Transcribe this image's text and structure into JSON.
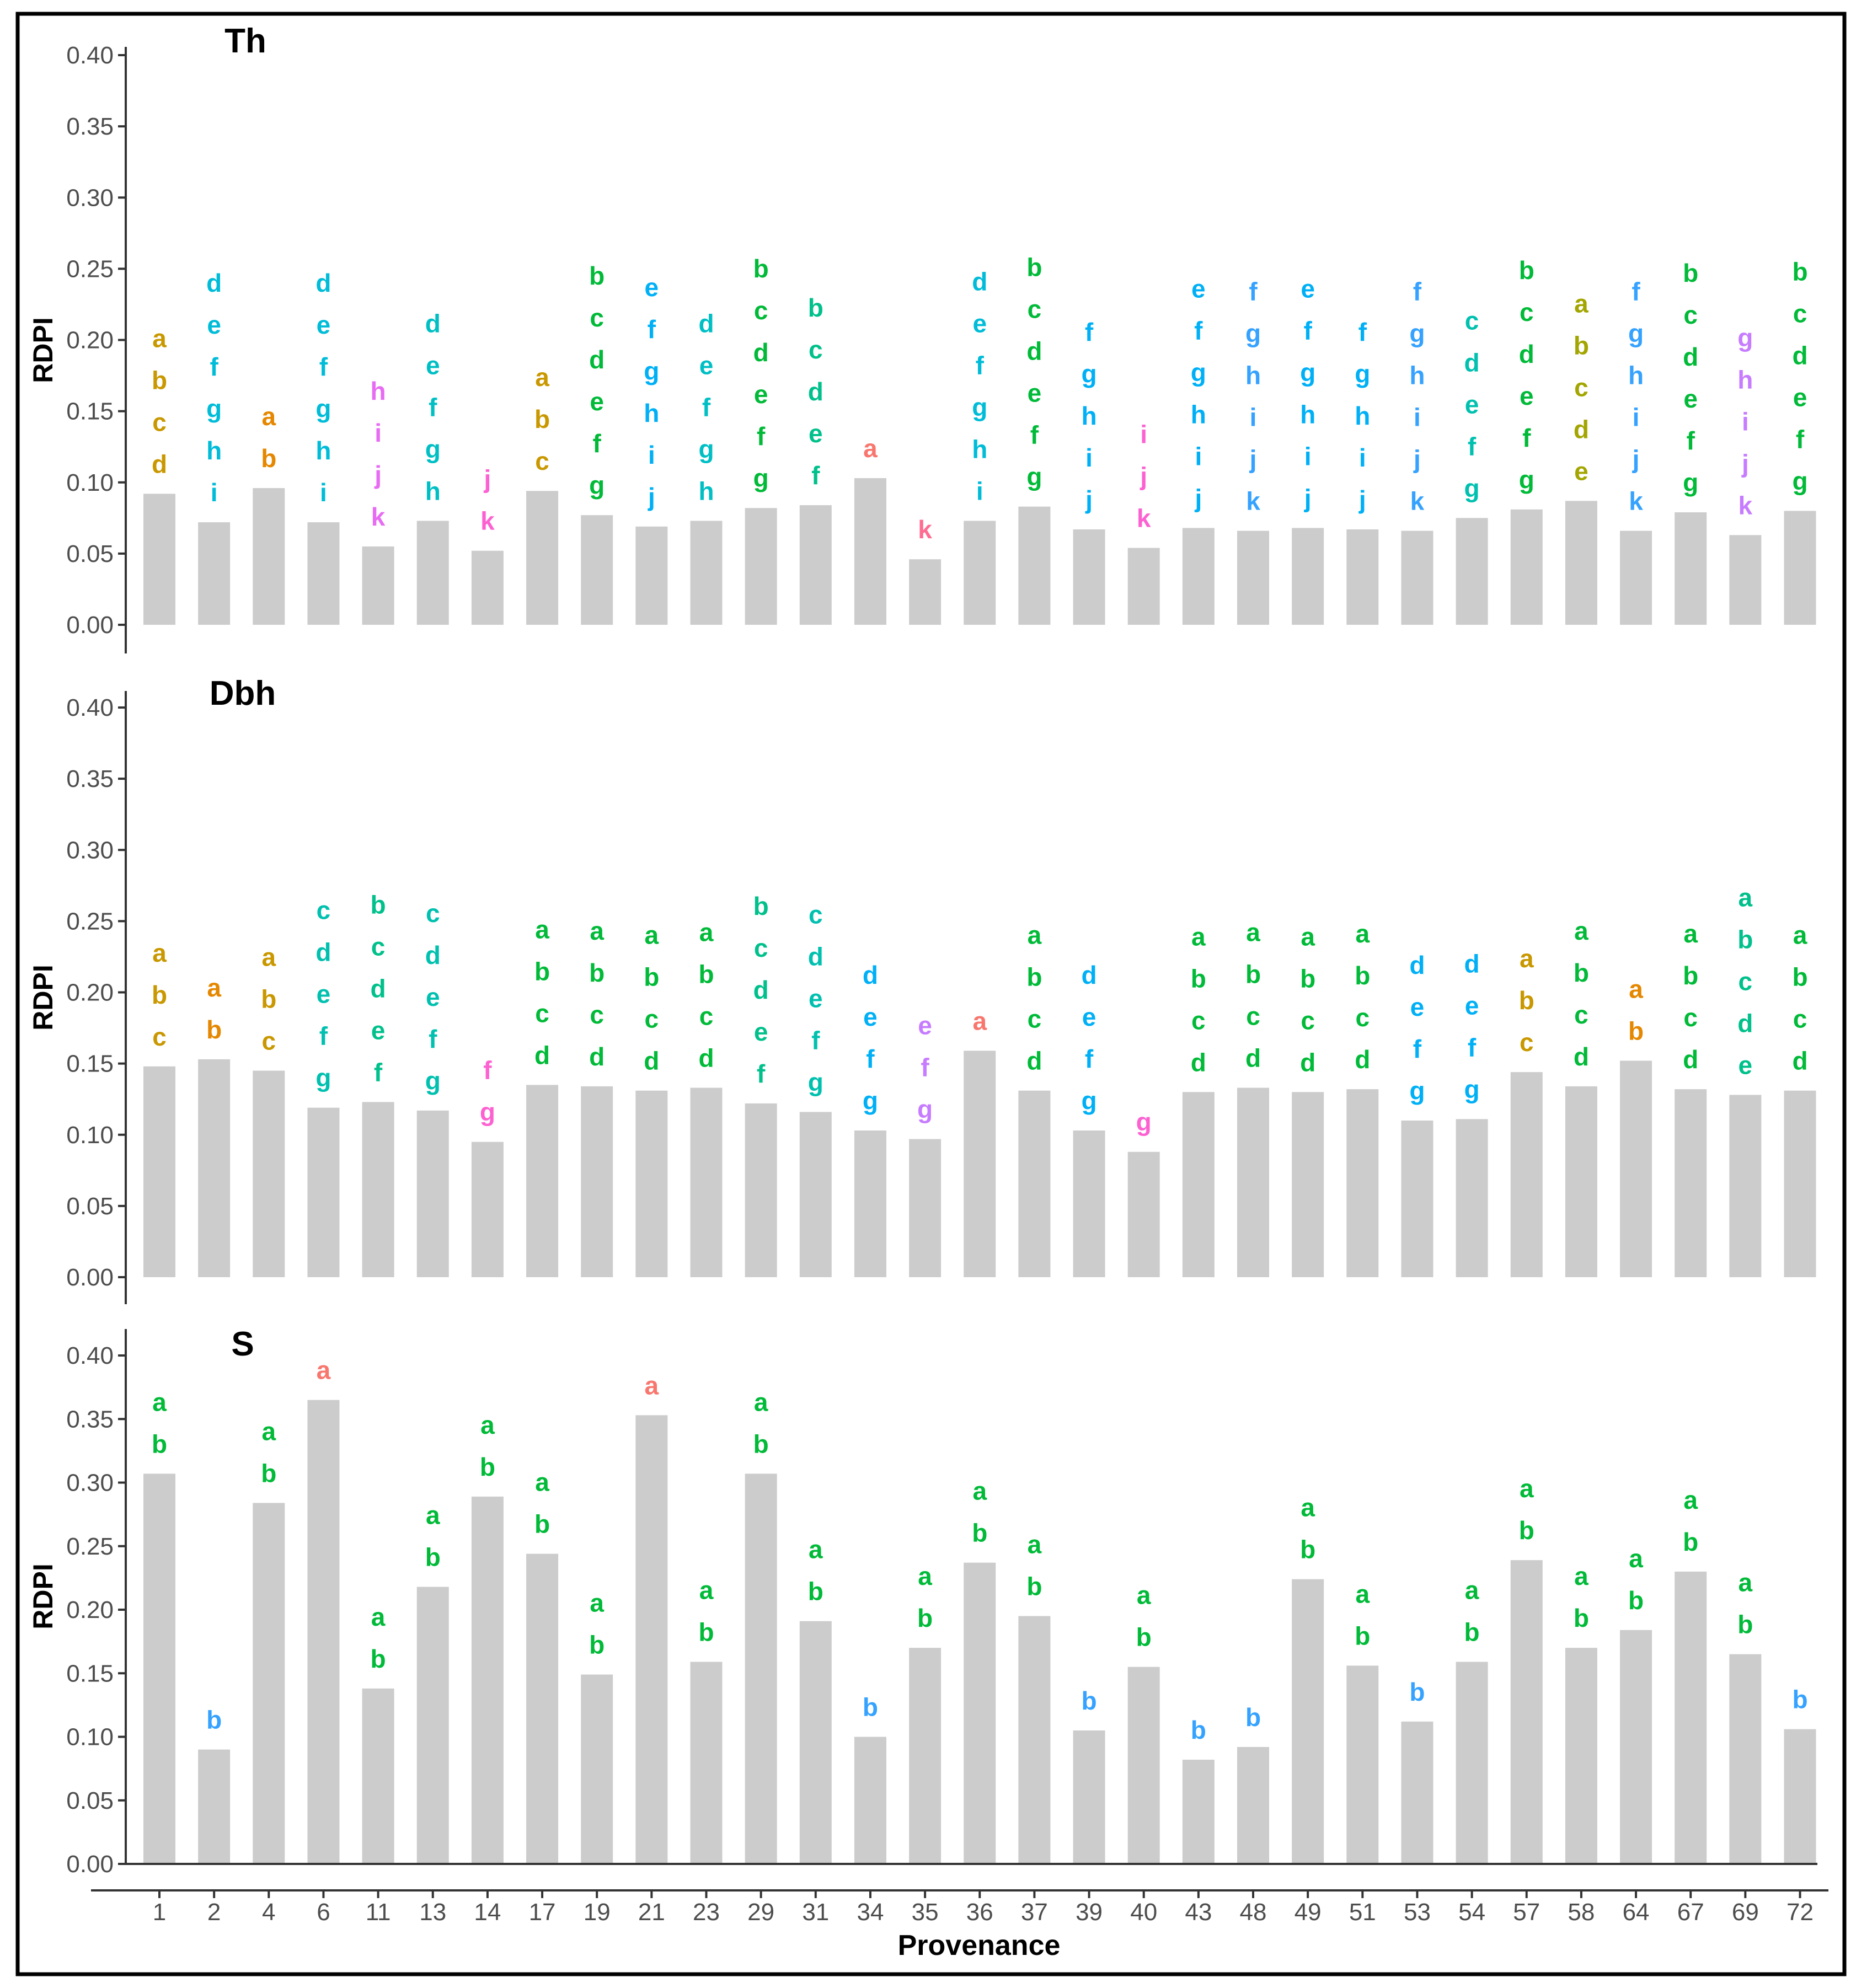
{
  "chart_data": {
    "type": "bar",
    "xlabel": "Provenance",
    "categories": [
      "1",
      "2",
      "4",
      "6",
      "11",
      "13",
      "14",
      "17",
      "19",
      "21",
      "23",
      "29",
      "31",
      "34",
      "35",
      "36",
      "37",
      "39",
      "40",
      "43",
      "48",
      "49",
      "51",
      "53",
      "54",
      "57",
      "58",
      "64",
      "67",
      "69",
      "72"
    ],
    "yticks": [
      "0.00",
      "0.05",
      "0.10",
      "0.15",
      "0.20",
      "0.25",
      "0.30",
      "0.35",
      "0.40"
    ],
    "ylim": [
      0,
      0.4
    ],
    "bar_color": "#cccccc",
    "panels": [
      {
        "title": "Th",
        "ylabel": "RDPI",
        "values": [
          0.092,
          0.072,
          0.096,
          0.072,
          0.055,
          0.073,
          0.052,
          0.094,
          0.077,
          0.069,
          0.073,
          0.082,
          0.084,
          0.103,
          0.046,
          0.073,
          0.083,
          0.067,
          0.054,
          0.068,
          0.066,
          0.068,
          0.067,
          0.066,
          0.075,
          0.081,
          0.087,
          0.066,
          0.079,
          0.063,
          0.08
        ],
        "letters": [
          "abcd",
          "defghi",
          "ab",
          "defghi",
          "hijk",
          "defgh",
          "jk",
          "abc",
          "bcdefg",
          "efghij",
          "defgh",
          "bcdefg",
          "bcdef",
          "a",
          "k",
          "defghi",
          "bcdefg",
          "fghij",
          "ijk",
          "efghij",
          "fghijk",
          "efghij",
          "fghij",
          "fghijk",
          "cdefg",
          "bcdefg",
          "abcde",
          "fghijk",
          "bcdefg",
          "ghijk",
          "bcdefg"
        ]
      },
      {
        "title": "Dbh",
        "ylabel": "RDPI",
        "values": [
          0.148,
          0.153,
          0.145,
          0.119,
          0.123,
          0.117,
          0.095,
          0.135,
          0.134,
          0.131,
          0.133,
          0.122,
          0.116,
          0.103,
          0.097,
          0.159,
          0.131,
          0.103,
          0.088,
          0.13,
          0.133,
          0.13,
          0.132,
          0.11,
          0.111,
          0.144,
          0.134,
          0.152,
          0.132,
          0.128,
          0.131
        ],
        "letters": [
          "abc",
          "ab",
          "abc",
          "cdefg",
          "bcdef",
          "cdefg",
          "fg",
          "abcd",
          "abcd",
          "abcd",
          "abcd",
          "bcdef",
          "cdefg",
          "defg",
          "efg",
          "a",
          "abcd",
          "defg",
          "g",
          "abcd",
          "abcd",
          "abcd",
          "abcd",
          "defg",
          "defg",
          "abc",
          "abcd",
          "ab",
          "abcd",
          "abcde",
          "abcd"
        ]
      },
      {
        "title": "S",
        "ylabel": "RDPI",
        "values": [
          0.307,
          0.09,
          0.284,
          0.365,
          0.138,
          0.218,
          0.289,
          0.244,
          0.149,
          0.353,
          0.159,
          0.307,
          0.191,
          0.1,
          0.17,
          0.237,
          0.195,
          0.105,
          0.155,
          0.082,
          0.092,
          0.224,
          0.156,
          0.112,
          0.159,
          0.239,
          0.17,
          0.184,
          0.23,
          0.165,
          0.106
        ],
        "letters": [
          "ab",
          "b",
          "ab",
          "a",
          "ab",
          "ab",
          "ab",
          "ab",
          "ab",
          "a",
          "ab",
          "ab",
          "ab",
          "b",
          "ab",
          "ab",
          "ab",
          "b",
          "ab",
          "b",
          "b",
          "ab",
          "ab",
          "b",
          "ab",
          "ab",
          "ab",
          "ab",
          "ab",
          "ab",
          "b"
        ]
      }
    ],
    "letter_colors": {
      "a": "#f8766d",
      "ab": "#e58700",
      "abc": "#c99800",
      "abcd": "#c99800",
      "abcde": "#a3a500",
      "abcd_dbh": "#00ba38",
      "ab_s": "#00ba38",
      "b": "#35a2ff",
      "defghi": "#00bcd8",
      "hijk": "#e76bf3",
      "jk": "#fd61d1",
      "k": "#ff6c91",
      "bcdefg": "#00ba38",
      "bcdef": "#00c08b",
      "efghij": "#00b0f6",
      "fghij": "#00b0f6",
      "fghijk": "#35a2ff",
      "ijk": "#fd61d1",
      "ghijk": "#c77cff",
      "cdefg": "#00c0af",
      "defgh": "#00bfc4",
      "efg": "#c77cff",
      "fg": "#fd61d1",
      "g": "#fd61d1",
      "defg": "#00b0f6",
      "abcde_dbh": "#00c08b"
    }
  }
}
